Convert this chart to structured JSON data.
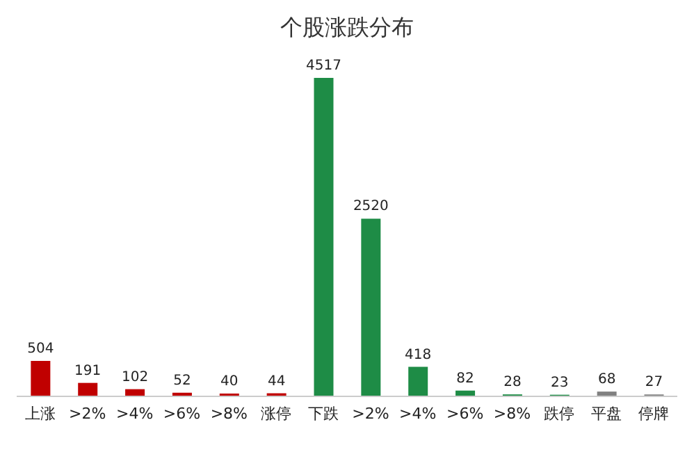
{
  "chart_data": {
    "type": "bar",
    "title": "个股涨跌分布",
    "categories": [
      "上涨",
      ">2%",
      ">4%",
      ">6%",
      ">8%",
      "涨停",
      "下跌",
      ">2%",
      ">4%",
      ">6%",
      ">8%",
      "跌停",
      "平盘",
      "停牌"
    ],
    "values": [
      504,
      191,
      102,
      52,
      40,
      44,
      4517,
      2520,
      418,
      82,
      28,
      23,
      68,
      27
    ],
    "colors": [
      "#c00000",
      "#c00000",
      "#c00000",
      "#c00000",
      "#c00000",
      "#c00000",
      "#1e8c46",
      "#1e8c46",
      "#1e8c46",
      "#1e8c46",
      "#1e8c46",
      "#1e8c46",
      "#808080",
      "#808080"
    ],
    "data_labels": true,
    "grid": false
  }
}
